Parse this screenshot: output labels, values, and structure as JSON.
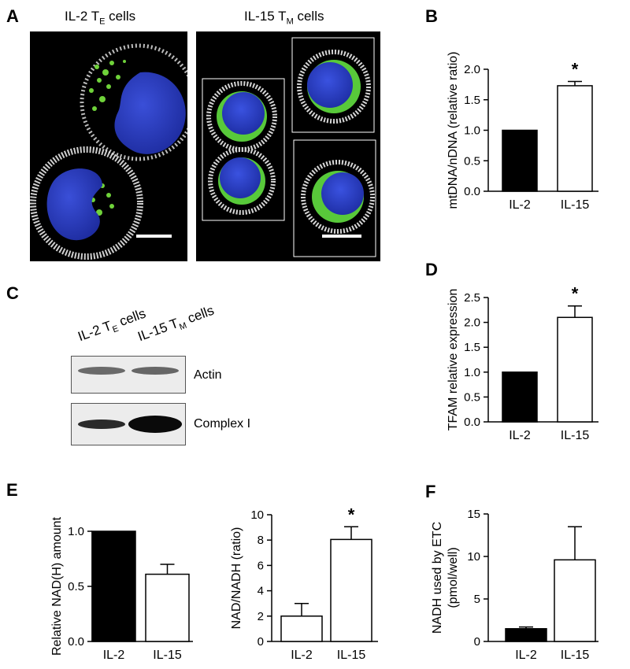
{
  "panels": {
    "A": {
      "letter": "A",
      "left_label_main": "IL-2 T",
      "left_label_sub": "E",
      "left_label_tail": " cells",
      "right_label_main": "IL-15 T",
      "right_label_sub": "M",
      "right_label_tail": " cells"
    },
    "B": {
      "letter": "B"
    },
    "C": {
      "letter": "C",
      "lane1_main": "IL-2 T",
      "lane1_sub": "E",
      "lane1_tail": " cells",
      "lane2_main": "IL-15 T",
      "lane2_sub": "M",
      "lane2_tail": " cells",
      "band1_label": "Actin",
      "band2_label": "Complex I"
    },
    "D": {
      "letter": "D"
    },
    "E": {
      "letter": "E"
    },
    "F": {
      "letter": "F"
    }
  },
  "chart_data": [
    {
      "id": "B",
      "type": "bar",
      "categories": [
        "IL-2",
        "IL-15"
      ],
      "values": [
        1.0,
        1.73
      ],
      "errors": [
        0,
        0.07
      ],
      "fills": [
        "#000000",
        "#ffffff"
      ],
      "ylabel": "mtDNA/nDNA (relative ratio)",
      "ylim": [
        0,
        2.0
      ],
      "yticks": [
        "0.0",
        "0.5",
        "1.0",
        "1.5",
        "2.0"
      ],
      "annotations": [
        "",
        "*"
      ]
    },
    {
      "id": "D",
      "type": "bar",
      "categories": [
        "IL-2",
        "IL-15"
      ],
      "values": [
        1.0,
        2.1
      ],
      "errors": [
        0,
        0.23
      ],
      "fills": [
        "#000000",
        "#ffffff"
      ],
      "ylabel": "TFAM relative expression",
      "ylim": [
        0,
        2.5
      ],
      "yticks": [
        "0.0",
        "0.5",
        "1.0",
        "1.5",
        "2.0",
        "2.5"
      ],
      "annotations": [
        "",
        "*"
      ]
    },
    {
      "id": "E1",
      "type": "bar",
      "categories": [
        "IL-2",
        "IL-15"
      ],
      "values": [
        1.0,
        0.61
      ],
      "errors": [
        0,
        0.09
      ],
      "fills": [
        "#000000",
        "#ffffff"
      ],
      "ylabel": "Relative NAD(H) amount",
      "ylim": [
        0,
        1.15
      ],
      "yticks": [
        "0.0",
        "0.5",
        "1.0"
      ],
      "annotations": [
        "",
        ""
      ]
    },
    {
      "id": "E2",
      "type": "bar",
      "categories": [
        "IL-2",
        "IL-15"
      ],
      "values": [
        2.0,
        8.05
      ],
      "errors": [
        1.0,
        1.0
      ],
      "fills": [
        "#ffffff",
        "#ffffff"
      ],
      "ylabel": "NAD/NADH (ratio)",
      "ylim": [
        0,
        10
      ],
      "yticks": [
        "0",
        "2",
        "4",
        "6",
        "8",
        "10"
      ],
      "annotations": [
        "",
        "*"
      ]
    },
    {
      "id": "F",
      "type": "bar",
      "categories": [
        "IL-2",
        "IL-15"
      ],
      "values": [
        1.5,
        9.6
      ],
      "errors": [
        0.2,
        3.9
      ],
      "fills": [
        "#000000",
        "#ffffff"
      ],
      "ylabel": "NADH used by ETC (pmol/well)",
      "ylabel_lines": [
        "NADH used by ETC",
        "(pmol/well)"
      ],
      "ylim": [
        0,
        15
      ],
      "yticks": [
        "0",
        "5",
        "10",
        "15"
      ],
      "annotations": [
        "",
        ""
      ]
    }
  ]
}
